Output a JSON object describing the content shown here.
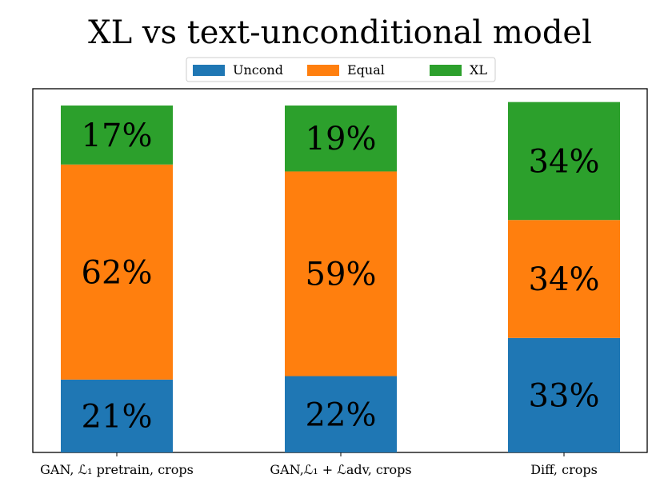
{
  "chart_data": {
    "type": "bar",
    "stacked": true,
    "percent_stacked": true,
    "title": "XL vs text-unconditional model",
    "xlabel": "",
    "ylabel": "",
    "ylim": [
      0,
      100
    ],
    "grid": false,
    "legend_position": "top-center",
    "categories": [
      {
        "text": "GAN, ℒ₁ pretrain, crops"
      },
      {
        "text": "GAN,ℒ₁ + ℒadv, crops"
      },
      {
        "text": "Diff, crops"
      }
    ],
    "series": [
      {
        "name": "Uncond",
        "color": "#1f77b4",
        "values": [
          21,
          22,
          33
        ],
        "labels": [
          "21%",
          "22%",
          "33%"
        ]
      },
      {
        "name": "Equal",
        "color": "#ff7f0e",
        "values": [
          62,
          59,
          34
        ],
        "labels": [
          "62%",
          "59%",
          "34%"
        ]
      },
      {
        "name": "XL",
        "color": "#2ca02c",
        "values": [
          17,
          19,
          34
        ],
        "labels": [
          "17%",
          "19%",
          "34%"
        ]
      }
    ]
  }
}
